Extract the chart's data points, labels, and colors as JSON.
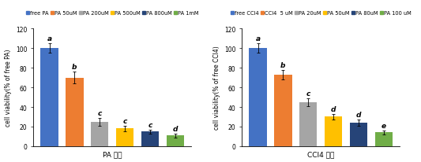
{
  "chart_A": {
    "title": "PA 농도",
    "ylabel": "cell viability(% of free PA)",
    "categories": [
      "free PA",
      "PA 50uM",
      "PA 200uM",
      "PA 500uM",
      "PA 800uM",
      "PA 1mM"
    ],
    "values": [
      100,
      70,
      25,
      18,
      15,
      11
    ],
    "errors": [
      5,
      6,
      4,
      3,
      2,
      2
    ],
    "colors": [
      "#4472C4",
      "#ED7D31",
      "#A5A5A5",
      "#FFC000",
      "#264478",
      "#70AD47"
    ],
    "letters": [
      "a",
      "b",
      "c",
      "c",
      "c",
      "d"
    ],
    "ylim": [
      0,
      120
    ],
    "yticks": [
      0,
      20,
      40,
      60,
      80,
      100,
      120
    ]
  },
  "chart_B": {
    "title": "CCl4 농도",
    "ylabel": "cell viability(% of free CCl4)",
    "categories": [
      "free CCl4",
      "CCl4  5 uM",
      "PA 20uM",
      "PA 50uM",
      "PA 80uM",
      "PA 100 uM"
    ],
    "values": [
      100,
      73,
      45,
      30,
      24,
      14
    ],
    "errors": [
      5,
      5,
      4,
      3,
      3,
      2
    ],
    "colors": [
      "#4472C4",
      "#ED7D31",
      "#A5A5A5",
      "#FFC000",
      "#264478",
      "#70AD47"
    ],
    "letters": [
      "a",
      "b",
      "c",
      "d",
      "d",
      "e"
    ],
    "ylim": [
      0,
      120
    ],
    "yticks": [
      0,
      20,
      40,
      60,
      80,
      100,
      120
    ]
  },
  "legend_fontsize": 4.8,
  "tick_fontsize": 5.5,
  "label_fontsize": 5.5,
  "title_fontsize": 6.5,
  "letter_fontsize": 6.5
}
